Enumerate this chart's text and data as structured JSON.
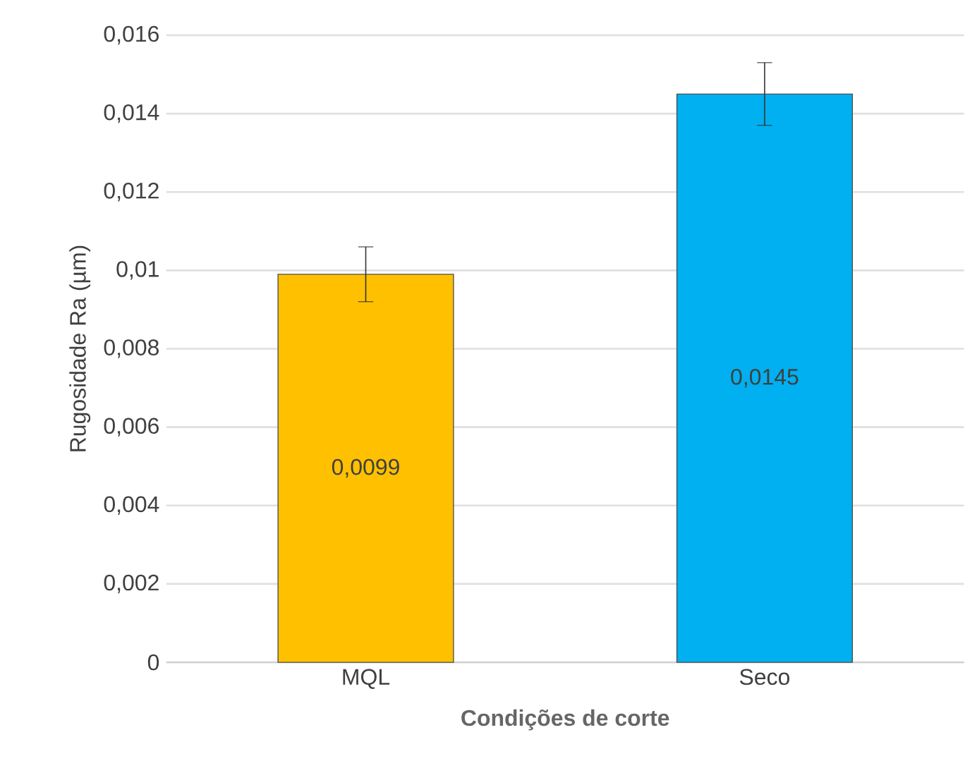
{
  "chart_data": {
    "type": "bar",
    "xlabel": "Condições de corte",
    "ylabel": "Rugosidade Ra (µm)",
    "categories": [
      "MQL",
      "Seco"
    ],
    "values": [
      0.0099,
      0.0145
    ],
    "colors": [
      "#ffc000",
      "#00b0f0"
    ],
    "errors": [
      0.0007,
      0.0008
    ],
    "value_labels": [
      "0,0099",
      "0,0145"
    ],
    "ylim": [
      0,
      0.016
    ],
    "yticks": [
      {
        "value": 0,
        "label": "0"
      },
      {
        "value": 0.002,
        "label": "0,002"
      },
      {
        "value": 0.004,
        "label": "0,004"
      },
      {
        "value": 0.006,
        "label": "0,006"
      },
      {
        "value": 0.008,
        "label": "0,008"
      },
      {
        "value": 0.01,
        "label": "0,01"
      },
      {
        "value": 0.012,
        "label": "0,012"
      },
      {
        "value": 0.014,
        "label": "0,014"
      },
      {
        "value": 0.016,
        "label": "0,016"
      }
    ],
    "grid": "y"
  }
}
